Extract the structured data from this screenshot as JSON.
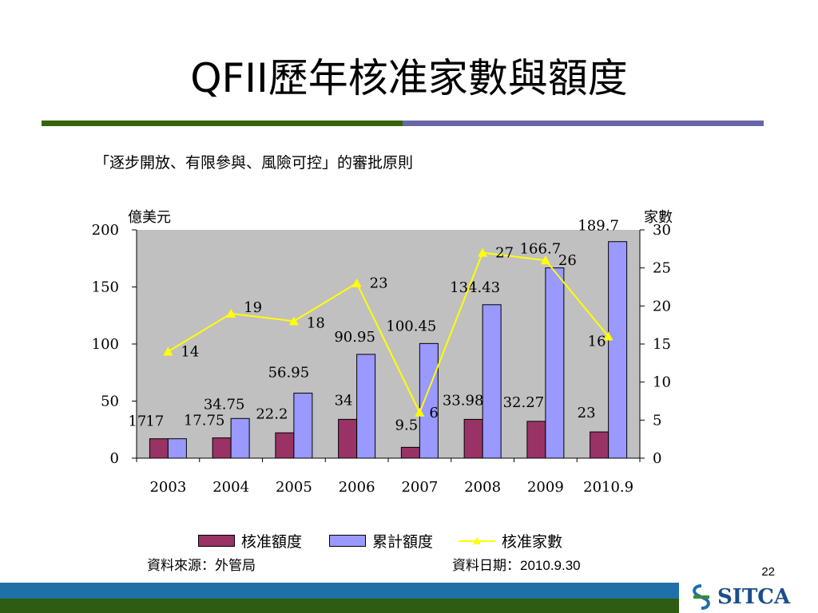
{
  "slide": {
    "title": "QFII歷年核准家數與額度",
    "subtitle": "「逐步開放、有限參與、風險可控」的審批原則",
    "source": "資料來源：外管局",
    "date_label": "資料日期：",
    "date_value": "2010.9.30",
    "page_number": "22",
    "logo_text": "SITCA"
  },
  "colors": {
    "approved_bar": "#993366",
    "cumulative_bar": "#9999ff",
    "line": "#ffff00",
    "plot_bg": "#c0c0c0",
    "green_rule": "#336600",
    "purple_rule": "#6666a8"
  },
  "chart_data": {
    "type": "bar",
    "categories": [
      "2003",
      "2004",
      "2005",
      "2006",
      "2007",
      "2008",
      "2009",
      "2010.9"
    ],
    "ylabel": "億美元",
    "y2label": "家數",
    "ylim": [
      0,
      200
    ],
    "y2lim": [
      0,
      30
    ],
    "yticks": [
      "200",
      "150",
      "100",
      "50",
      "0"
    ],
    "y2ticks": [
      "30",
      "25",
      "20",
      "15",
      "10",
      "5",
      "0"
    ],
    "legend_position": "bottom",
    "series": [
      {
        "name": "核准額度",
        "type": "bar",
        "values": [
          17,
          17.75,
          22.2,
          34,
          9.5,
          33.98,
          32.27,
          23
        ],
        "labels": [
          "17",
          "17.75",
          "22.2",
          "34",
          "9.5",
          "33.98",
          "32.27",
          "23"
        ]
      },
      {
        "name": "累計額度",
        "type": "bar",
        "values": [
          17,
          34.75,
          56.95,
          90.95,
          100.45,
          134.43,
          166.7,
          189.7
        ],
        "labels": [
          "17",
          "34.75",
          "56.95",
          "90.95",
          "100.45",
          "134.43",
          "166.7",
          "189.7"
        ]
      },
      {
        "name": "核准家數",
        "type": "line",
        "axis": "right",
        "values": [
          14,
          19,
          18,
          23,
          6,
          27,
          26,
          16
        ],
        "labels": [
          "14",
          "19",
          "18",
          "23",
          "6",
          "27",
          "26",
          "16"
        ]
      }
    ]
  }
}
